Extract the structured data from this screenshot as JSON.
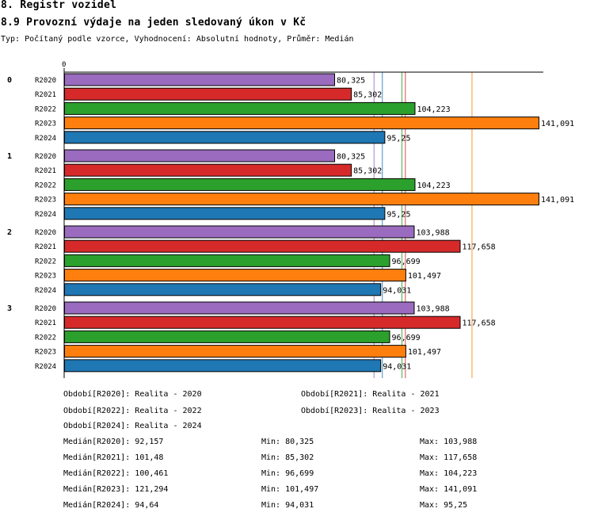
{
  "header": {
    "title": "8. Registr vozidel",
    "subtitle": "8.9 Provozní výdaje na jeden sledovaný úkon v Kč",
    "type_line": "Typ: Počítaný podle vzorce, Vyhodnocení: Absolutní hodnoty, Průměr: Medián"
  },
  "chart_data": {
    "type": "bar",
    "orientation": "horizontal",
    "axis_zero_label": "0",
    "xlim": [
      0,
      141.091
    ],
    "groups": [
      "0",
      "1",
      "2",
      "3"
    ],
    "series": [
      {
        "name": "R2020",
        "color": "#9a6bbf",
        "values": [
          80.325,
          80.325,
          103.988,
          103.988
        ],
        "labels": [
          "80,325",
          "80,325",
          "103,988",
          "103,988"
        ]
      },
      {
        "name": "R2021",
        "color": "#d62a2a",
        "values": [
          85.302,
          85.302,
          117.658,
          117.658
        ],
        "labels": [
          "85,302",
          "85,302",
          "117,658",
          "117,658"
        ]
      },
      {
        "name": "R2022",
        "color": "#2ca02c",
        "values": [
          104.223,
          104.223,
          96.699,
          96.699
        ],
        "labels": [
          "104,223",
          "104,223",
          "96,699",
          "96,699"
        ]
      },
      {
        "name": "R2023",
        "color": "#ff7f0e",
        "values": [
          141.091,
          141.091,
          101.497,
          101.497
        ],
        "labels": [
          "141,091",
          "141,091",
          "101,497",
          "101,497"
        ]
      },
      {
        "name": "R2024",
        "color": "#1f77b4",
        "values": [
          95.25,
          95.25,
          94.031,
          94.031
        ],
        "labels": [
          "95,25",
          "95,25",
          "94,031",
          "94,031"
        ]
      }
    ],
    "median_lines": [
      {
        "series": "R2020",
        "value": 92.157
      },
      {
        "series": "R2021",
        "value": 101.48
      },
      {
        "series": "R2022",
        "value": 100.461
      },
      {
        "series": "R2023",
        "value": 121.294
      },
      {
        "series": "R2024",
        "value": 94.64
      }
    ]
  },
  "legend": {
    "periods": [
      "Období[R2020]: Realita - 2020",
      "Období[R2021]: Realita - 2021",
      "Období[R2022]: Realita - 2022",
      "Období[R2023]: Realita - 2023",
      "Období[R2024]: Realita - 2024"
    ],
    "stats": [
      {
        "median": "Medián[R2020]: 92,157",
        "min": "Min: 80,325",
        "max": "Max: 103,988"
      },
      {
        "median": "Medián[R2021]: 101,48",
        "min": "Min: 85,302",
        "max": "Max: 117,658"
      },
      {
        "median": "Medián[R2022]: 100,461",
        "min": "Min: 96,699",
        "max": "Max: 104,223"
      },
      {
        "median": "Medián[R2023]: 121,294",
        "min": "Min: 101,497",
        "max": "Max: 141,091"
      },
      {
        "median": "Medián[R2024]: 94,64",
        "min": "Min: 94,031",
        "max": "Max: 95,25"
      }
    ]
  }
}
